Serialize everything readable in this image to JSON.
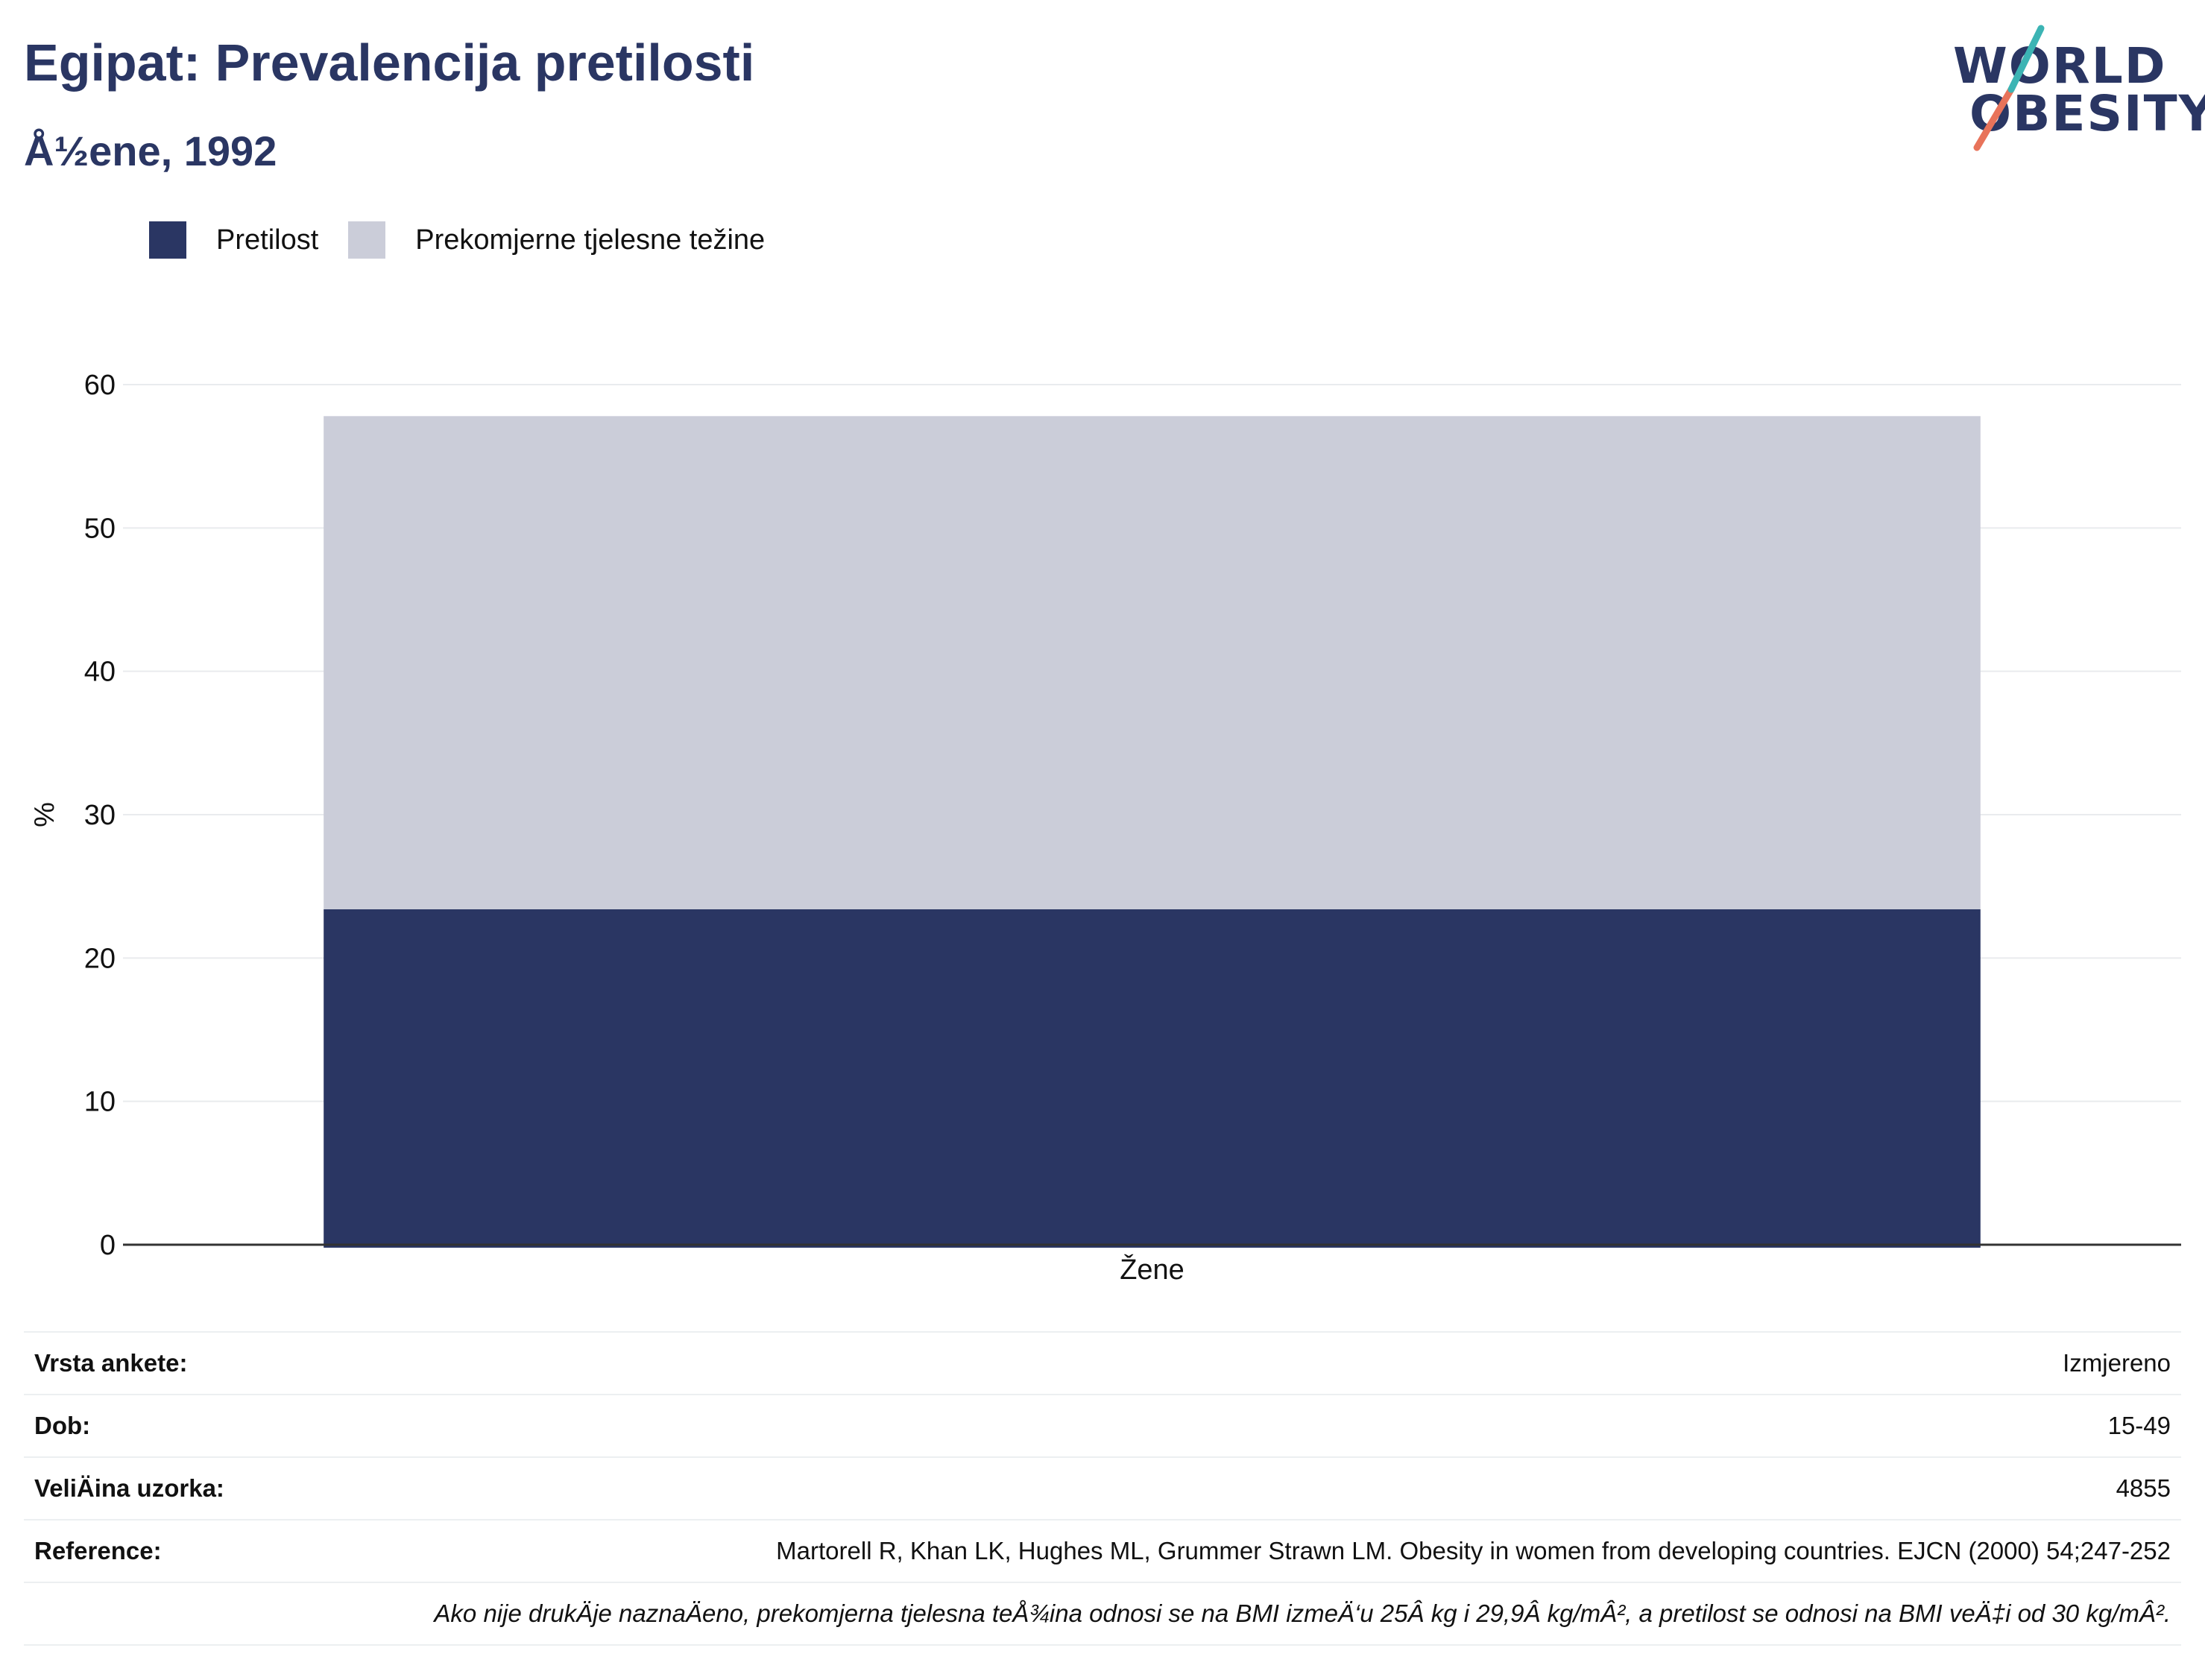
{
  "header": {
    "title": "Egipat: Prevalencija pretilosti",
    "subtitle": "Å½ene, 1992"
  },
  "logo": {
    "line1": "WORLD",
    "line2": "OBESITY"
  },
  "legend": {
    "items": [
      {
        "label": "Pretilost",
        "color": "#2a3663"
      },
      {
        "label": "Prekomjerne tjelesne težine",
        "color": "#cbcdd9"
      }
    ]
  },
  "chart_data": {
    "type": "bar",
    "stacked": true,
    "categories": [
      "Žene"
    ],
    "series": [
      {
        "name": "Pretilost",
        "values": [
          23.4
        ],
        "color": "#2a3663"
      },
      {
        "name": "Prekomjerne tjelesne težine",
        "values": [
          34.4
        ],
        "color": "#cbcdd9"
      }
    ],
    "ylabel": "%",
    "xlabel": "",
    "ylim": [
      0,
      60
    ],
    "yticks": [
      0,
      10,
      20,
      30,
      40,
      50,
      60
    ],
    "grid": true,
    "legend_position": "top-left"
  },
  "info": {
    "rows": [
      {
        "label": "Vrsta ankete:",
        "value": "Izmjereno"
      },
      {
        "label": "Dob:",
        "value": "15-49"
      },
      {
        "label": "VeliÄ\u001dina uzorka:",
        "value": "4855"
      },
      {
        "label": "Reference:",
        "value": "Martorell R, Khan LK, Hughes ML, Grummer Strawn LM. Obesity in women from developing countries. EJCN (2000) 54;247-252"
      }
    ],
    "note": "Ako nije drukÄ\u001dje naznaÄ\u001deno, prekomjerna tjelesna teÅ¾ina odnosi se na BMI izmeÄ‘u 25Â kg i 29,9Â kg/mÂ², a pretilost se odnosi na BMI veÄ‡i od 30 kg/mÂ²."
  }
}
